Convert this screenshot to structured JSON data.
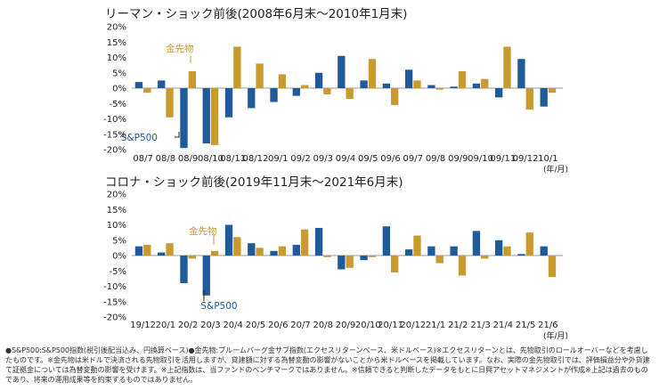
{
  "colors": {
    "sp500": "#1f5a9a",
    "gold": "#c99a2e",
    "axis": "#9a9a9a"
  },
  "footnote": "●S&P500:S&P500指数(税引後配当込み、円換算ベース)●金先物:ブルームバーグ金サブ指数(エクセスリターンベース、米ドルベース)※エクセスリターンとは、先物取引のロールオーバーなどを考慮したものです。※金先物は米ドルで決済される先物取引を活用しますが、貸建額に対する為替変動の影響がないことから米ドルベースを掲載しています。なお、実際の金先物取引では、評価損益分や外貨建て証拠金については為替変動の影響を受けます。※上記指数は、当ファンドのベンチマークではありません。※信頼できると判断したデータをもとに日興アセットマネジメントが作成※上記は過去のものであり、将来の運用成果等を約束するものではありません。",
  "chart_data": [
    {
      "type": "bar",
      "title": "リーマン・ショック前後(2008年6月末～2010年1月末)",
      "unit_label": "(年/月)",
      "categories": [
        "08/7",
        "08/8",
        "08/9",
        "08/10",
        "08/11",
        "08/12",
        "09/1",
        "09/2",
        "09/3",
        "09/4",
        "09/5",
        "09/6",
        "09/7",
        "09/8",
        "09/9",
        "09/10",
        "09/11",
        "09/12",
        "10/1"
      ],
      "ylim": [
        -20,
        20
      ],
      "yticks": [
        -20,
        -15,
        -10,
        -5,
        0,
        5,
        10,
        15,
        20
      ],
      "series": [
        {
          "name": "S&P500",
          "values": [
            2.0,
            2.5,
            -19.5,
            -18.0,
            -9.5,
            -6.5,
            -4.5,
            -2.5,
            5.0,
            10.5,
            2.5,
            1.5,
            6.0,
            1.0,
            0.5,
            1.5,
            -3.0,
            9.5,
            -6.0
          ]
        },
        {
          "name": "金先物",
          "values": [
            -1.5,
            -9.5,
            5.5,
            -18.5,
            13.5,
            8.0,
            4.5,
            1.0,
            -2.0,
            -3.5,
            9.5,
            -5.5,
            2.5,
            -0.5,
            5.5,
            3.0,
            13.5,
            -7.0,
            -1.5
          ]
        }
      ],
      "annotations": {
        "sp500_label": "S&P500",
        "gold_label": "金先物"
      }
    },
    {
      "type": "bar",
      "title": "コロナ・ショック前後(2019年11月末～2021年6月末)",
      "unit_label": "(年/月)",
      "categories": [
        "19/12",
        "20/1",
        "20/2",
        "20/3",
        "20/4",
        "20/5",
        "20/6",
        "20/7",
        "20/8",
        "20/9",
        "20/10",
        "20/11",
        "20/12",
        "21/1",
        "21/2",
        "21/3",
        "21/4",
        "21/5",
        "21/6"
      ],
      "ylim": [
        -20,
        20
      ],
      "yticks": [
        -20,
        -15,
        -10,
        -5,
        0,
        5,
        10,
        15,
        20
      ],
      "series": [
        {
          "name": "S&P500",
          "values": [
            3.0,
            1.0,
            -9.0,
            -13.0,
            10.0,
            4.0,
            1.5,
            3.5,
            9.0,
            -4.5,
            -1.5,
            9.5,
            2.0,
            3.0,
            3.0,
            8.0,
            5.0,
            0.5,
            3.0
          ]
        },
        {
          "name": "金先物",
          "values": [
            3.5,
            4.0,
            -1.0,
            1.5,
            6.0,
            2.5,
            3.0,
            8.5,
            -0.5,
            -4.0,
            -0.5,
            -5.5,
            6.5,
            -2.5,
            -6.5,
            -1.0,
            3.0,
            7.5,
            -7.0
          ]
        }
      ],
      "annotations": {
        "sp500_label": "S&P500",
        "gold_label": "金先物"
      }
    }
  ]
}
